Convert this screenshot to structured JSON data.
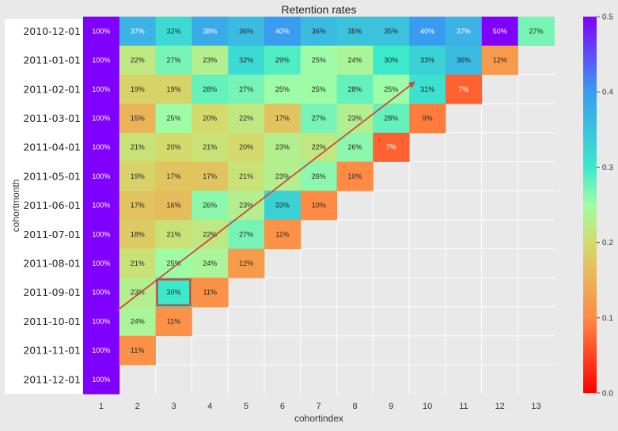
{
  "chart_data": {
    "type": "heatmap",
    "title": "Retention rates",
    "xlabel": "cohortindex",
    "ylabel": "cohortmonth",
    "x_categories": [
      "1",
      "2",
      "3",
      "4",
      "5",
      "6",
      "7",
      "8",
      "9",
      "10",
      "11",
      "12",
      "13"
    ],
    "y_categories": [
      "2010-12-01",
      "2011-01-01",
      "2011-02-01",
      "2011-03-01",
      "2011-04-01",
      "2011-05-01",
      "2011-06-01",
      "2011-07-01",
      "2011-08-01",
      "2011-09-01",
      "2011-10-01",
      "2011-11-01",
      "2011-12-01"
    ],
    "values": [
      [
        1.0,
        0.37,
        0.32,
        0.38,
        0.36,
        0.4,
        0.36,
        0.35,
        0.35,
        0.4,
        0.37,
        0.5,
        0.27
      ],
      [
        1.0,
        0.22,
        0.27,
        0.23,
        0.32,
        0.29,
        0.25,
        0.24,
        0.3,
        0.33,
        0.36,
        0.12
      ],
      [
        1.0,
        0.19,
        0.19,
        0.28,
        0.27,
        0.25,
        0.25,
        0.28,
        0.25,
        0.31,
        0.07
      ],
      [
        1.0,
        0.15,
        0.25,
        0.2,
        0.22,
        0.17,
        0.27,
        0.23,
        0.28,
        0.09
      ],
      [
        1.0,
        0.21,
        0.2,
        0.21,
        0.2,
        0.23,
        0.22,
        0.26,
        0.07
      ],
      [
        1.0,
        0.19,
        0.17,
        0.17,
        0.21,
        0.23,
        0.26,
        0.1
      ],
      [
        1.0,
        0.17,
        0.16,
        0.26,
        0.23,
        0.33,
        0.1
      ],
      [
        1.0,
        0.18,
        0.21,
        0.22,
        0.27,
        0.11
      ],
      [
        1.0,
        0.21,
        0.25,
        0.24,
        0.12
      ],
      [
        1.0,
        0.23,
        0.3,
        0.11
      ],
      [
        1.0,
        0.24,
        0.11
      ],
      [
        1.0,
        0.11
      ],
      [
        1.0
      ]
    ],
    "colorbar": {
      "vmin": 0.0,
      "vmax": 0.5,
      "ticks": [
        "0.0",
        "0.1",
        "0.2",
        "0.3",
        "0.4",
        "0.5"
      ],
      "colormap": "rainbow_r"
    },
    "annotations": {
      "highlight_box": {
        "row": "2011-09-01",
        "col": "3",
        "color": "#d0473b"
      },
      "arrow": {
        "from": {
          "row": "2011-10-01",
          "col": "1"
        },
        "to": {
          "row": "2011-02-01",
          "col": "10"
        },
        "color": "#d0473b"
      }
    }
  }
}
